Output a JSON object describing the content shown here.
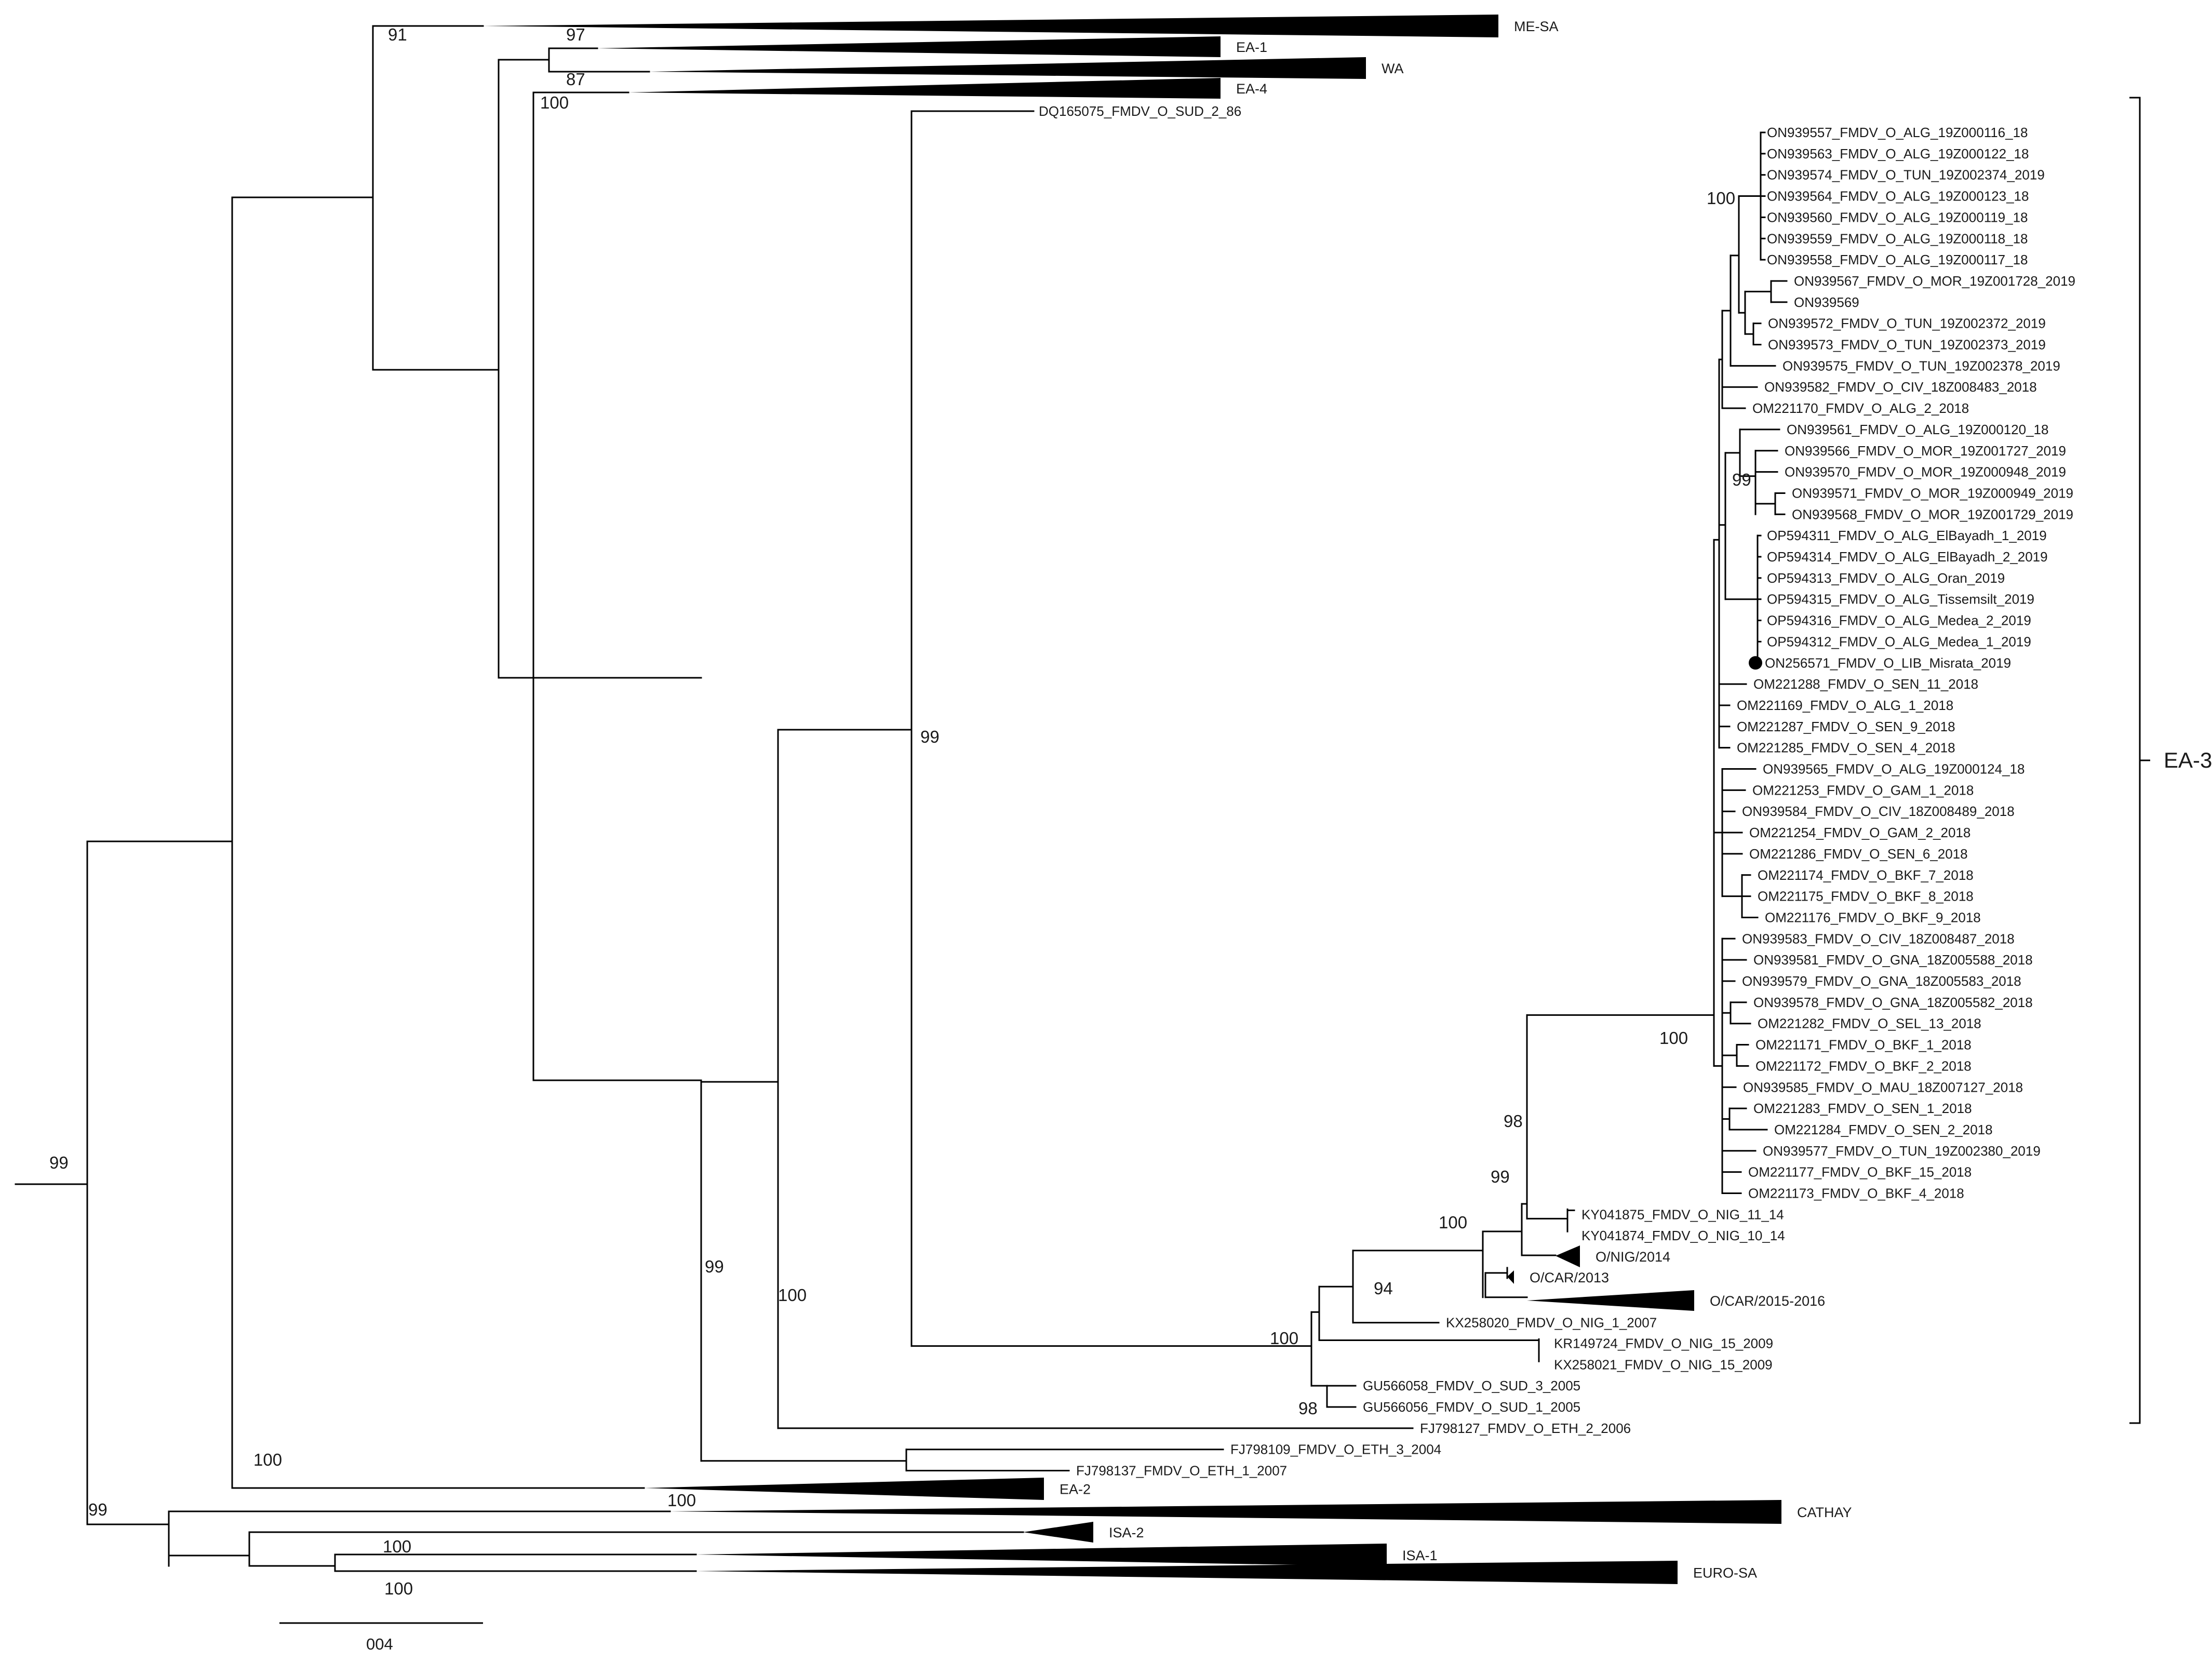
{
  "tree": {
    "tips": [
      "ON939557_FMDV_O_ALG_19Z000116_18",
      "ON939563_FMDV_O_ALG_19Z000122_18",
      "ON939574_FMDV_O_TUN_19Z002374_2019",
      "ON939564_FMDV_O_ALG_19Z000123_18",
      "ON939560_FMDV_O_ALG_19Z000119_18",
      "ON939559_FMDV_O_ALG_19Z000118_18",
      "ON939558_FMDV_O_ALG_19Z000117_18",
      "ON939567_FMDV_O_MOR_19Z001728_2019",
      "ON939569",
      "ON939572_FMDV_O_TUN_19Z002372_2019",
      "ON939573_FMDV_O_TUN_19Z002373_2019",
      "ON939575_FMDV_O_TUN_19Z002378_2019",
      "ON939582_FMDV_O_CIV_18Z008483_2018",
      "OM221170_FMDV_O_ALG_2_2018",
      "ON939561_FMDV_O_ALG_19Z000120_18",
      "ON939566_FMDV_O_MOR_19Z001727_2019",
      "ON939570_FMDV_O_MOR_19Z000948_2019",
      "ON939571_FMDV_O_MOR_19Z000949_2019",
      "ON939568_FMDV_O_MOR_19Z001729_2019",
      "OP594311_FMDV_O_ALG_ElBayadh_1_2019",
      "OP594314_FMDV_O_ALG_ElBayadh_2_2019",
      "OP594313_FMDV_O_ALG_Oran_2019",
      "OP594315_FMDV_O_ALG_Tissemsilt_2019",
      "OP594316_FMDV_O_ALG_Medea_2_2019",
      "OP594312_FMDV_O_ALG_Medea_1_2019",
      "ON256571_FMDV_O_LIB_Misrata_2019",
      "OM221288_FMDV_O_SEN_11_2018",
      "OM221169_FMDV_O_ALG_1_2018",
      "OM221287_FMDV_O_SEN_9_2018",
      "OM221285_FMDV_O_SEN_4_2018",
      "ON939565_FMDV_O_ALG_19Z000124_18",
      "OM221253_FMDV_O_GAM_1_2018",
      "ON939584_FMDV_O_CIV_18Z008489_2018",
      "OM221254_FMDV_O_GAM_2_2018",
      "OM221286_FMDV_O_SEN_6_2018",
      "OM221174_FMDV_O_BKF_7_2018",
      "OM221175_FMDV_O_BKF_8_2018",
      "OM221176_FMDV_O_BKF_9_2018",
      "ON939583_FMDV_O_CIV_18Z008487_2018",
      "ON939581_FMDV_O_GNA_18Z005588_2018",
      "ON939579_FMDV_O_GNA_18Z005583_2018",
      "ON939578_FMDV_O_GNA_18Z005582_2018",
      "OM221282_FMDV_O_SEL_13_2018",
      "OM221171_FMDV_O_BKF_1_2018",
      "OM221172_FMDV_O_BKF_2_2018",
      "ON939585_FMDV_O_MAU_18Z007127_2018",
      "OM221283_FMDV_O_SEN_1_2018",
      "OM221284_FMDV_O_SEN_2_2018",
      "ON939577_FMDV_O_TUN_19Z002380_2019",
      "OM221177_FMDV_O_BKF_15_2018",
      "OM221173_FMDV_O_BKF_4_2018",
      "KY041875_FMDV_O_NIG_11_14",
      "KY041874_FMDV_O_NIG_10_14",
      "KX258020_FMDV_O_NIG_1_2007",
      "KR149724_FMDV_O_NIG_15_2009",
      "KX258021_FMDV_O_NIG_15_2009",
      "GU566058_FMDV_O_SUD_3_2005",
      "GU566056_FMDV_O_SUD_1_2005",
      "FJ798127_FMDV_O_ETH_2_2006",
      "FJ798109_FMDV_O_ETH_3_2004",
      "FJ798137_FMDV_O_ETH_1_2007",
      "DQ165075_FMDV_O_SUD_2_86"
    ],
    "collapsed_clades": [
      "ME-SA",
      "EA-1",
      "WA",
      "EA-4",
      "O/NIG/2014",
      "O/CAR/2013",
      "O/CAR/2015-2016",
      "EA-2",
      "CATHAY",
      "ISA-2",
      "ISA-1",
      "EURO-SA"
    ],
    "bootstrap": [
      "91",
      "97",
      "87",
      "100",
      "99",
      "100",
      "99",
      "99",
      "98",
      "99",
      "100",
      "94",
      "100",
      "98",
      "99",
      "100",
      "100",
      "99",
      "100",
      "100",
      "100",
      "100"
    ],
    "bracket_label": "EA-3",
    "scale_label": "004",
    "highlighted_tip": "ON256571_FMDV_O_LIB_Misrata_2019"
  }
}
